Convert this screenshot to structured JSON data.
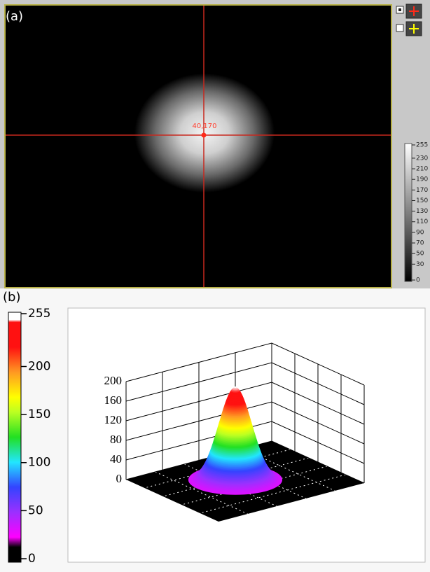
{
  "panel_a": {
    "label": "(a)",
    "cursor_label": "40,170",
    "colorbar_ticks": [
      255,
      230,
      210,
      190,
      170,
      150,
      130,
      110,
      90,
      70,
      50,
      30,
      0
    ]
  },
  "panel_b": {
    "label": "(b)",
    "colorbar_ticks": [
      255,
      200,
      150,
      100,
      50,
      0
    ],
    "z_ticks": [
      0,
      40,
      80,
      120,
      160,
      200
    ]
  }
}
